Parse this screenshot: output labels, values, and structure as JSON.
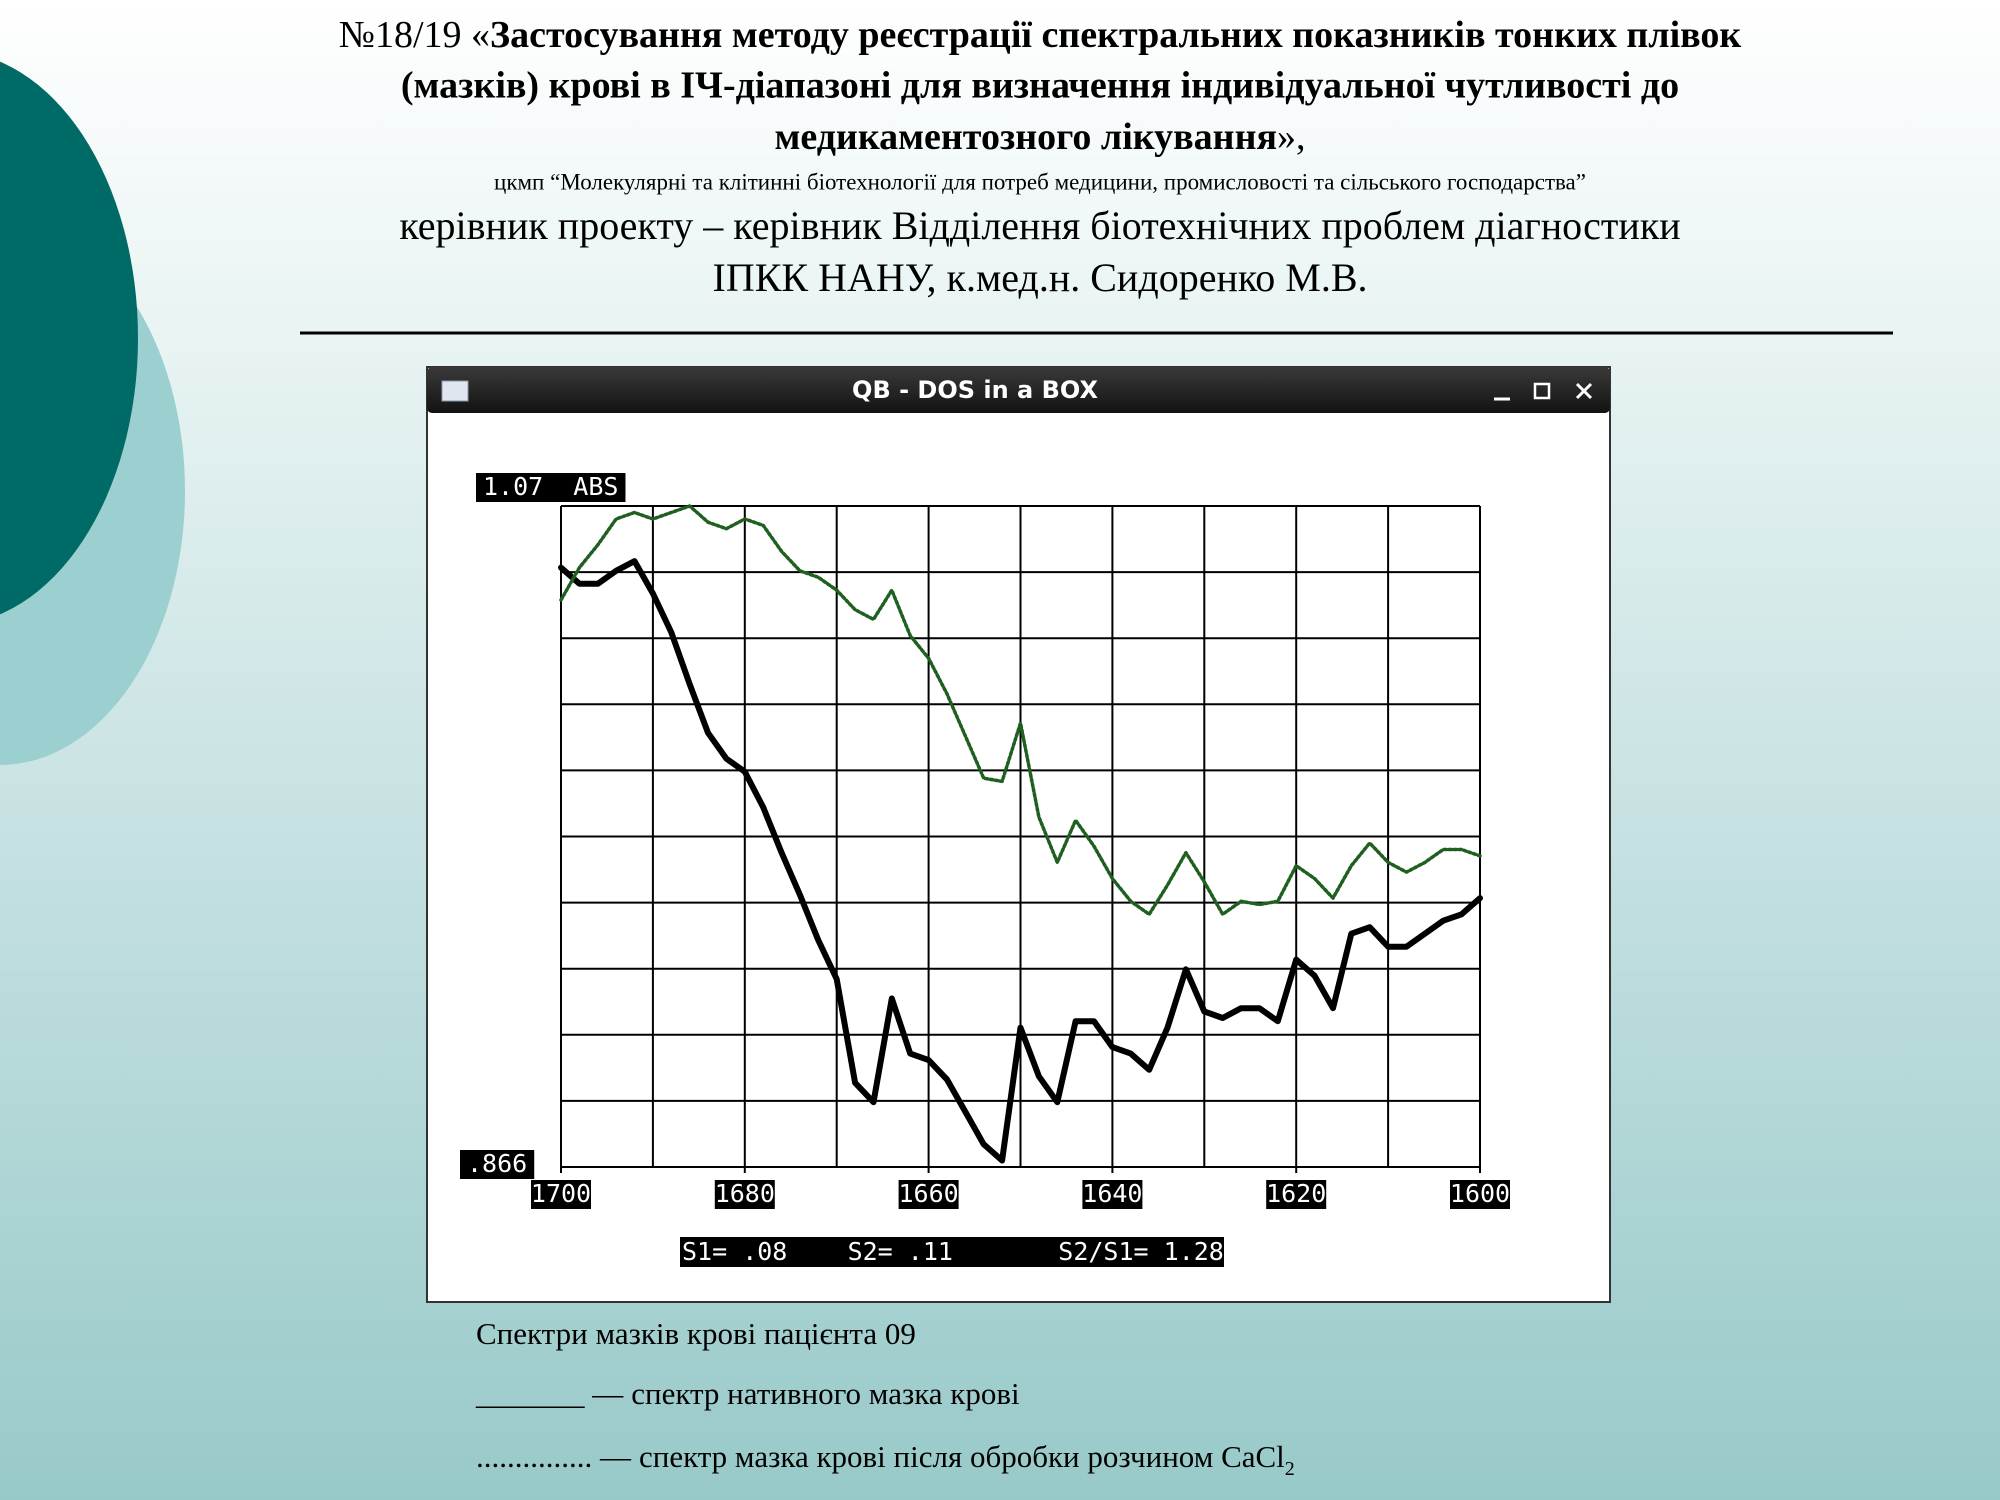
{
  "slide": {
    "title": {
      "prefix": "№18/19 «",
      "lines": [
        "Застосування методу реєстрації спектральних показників тонких плівок",
        "(мазків) крові в ІЧ-діапазоні для визначення індивідуальної чутливості до",
        "медикаментозного лікування"
      ],
      "suffix": "»,"
    },
    "program": "цкмп “Молекулярні та клітинні біотехнології для потреб медицини, промисловості та сільського господарства”",
    "leader_lines": [
      "керівник проекту – керівник Відділення біотехнічних проблем діагностики",
      "ІПКК НАНУ, к.мед.н. Сидоренко М.В."
    ],
    "window_title": "QB - DOS in a BOX",
    "caption": "Спектри мазків крові пацієнта 09"
  },
  "chart_data": {
    "type": "line",
    "x": [
      1700,
      1698,
      1696,
      1694,
      1692,
      1690,
      1688,
      1686,
      1684,
      1682,
      1680,
      1678,
      1676,
      1674,
      1672,
      1670,
      1668,
      1666,
      1664,
      1662,
      1660,
      1658,
      1656,
      1654,
      1652,
      1650,
      1648,
      1646,
      1644,
      1642,
      1640,
      1638,
      1636,
      1634,
      1632,
      1630,
      1628,
      1626,
      1624,
      1622,
      1620,
      1618,
      1616,
      1614,
      1612,
      1610,
      1608,
      1606,
      1604,
      1602,
      1600
    ],
    "xlim": [
      1700,
      1600
    ],
    "xticks": [
      1700,
      1680,
      1660,
      1640,
      1620,
      1600
    ],
    "ylim": [
      0.866,
      1.07
    ],
    "yticks": [
      {
        "value": 1.07,
        "label": "1.07  ABS"
      },
      {
        "value": 0.866,
        "label": ".866"
      }
    ],
    "grid": true,
    "grid_cells": [
      10,
      10
    ],
    "annotation": "S1= .08    S2= .11       S2/S1= 1.28",
    "series": [
      {
        "name": "спектр нативного мазка крові",
        "legend_marker": "_______ —",
        "color": "#000000",
        "style": "solid",
        "values": [
          1.051,
          1.046,
          1.046,
          1.05,
          1.053,
          1.043,
          1.031,
          1.015,
          1.0,
          0.992,
          0.988,
          0.977,
          0.963,
          0.95,
          0.936,
          0.924,
          0.892,
          0.886,
          0.918,
          0.901,
          0.899,
          0.893,
          0.883,
          0.873,
          0.868,
          0.909,
          0.894,
          0.886,
          0.911,
          0.911,
          0.903,
          0.901,
          0.896,
          0.909,
          0.927,
          0.914,
          0.912,
          0.915,
          0.915,
          0.911,
          0.93,
          0.925,
          0.915,
          0.938,
          0.94,
          0.934,
          0.934,
          0.938,
          0.942,
          0.944,
          0.949
        ]
      },
      {
        "name": "спектр мазка крові після обробки розчином CaCl",
        "name_subscript": "2",
        "legend_marker": "............... —",
        "color": "#1f5f1f",
        "style": "dotted",
        "values": [
          1.041,
          1.051,
          1.058,
          1.066,
          1.068,
          1.066,
          1.068,
          1.07,
          1.065,
          1.063,
          1.066,
          1.064,
          1.056,
          1.05,
          1.048,
          1.044,
          1.038,
          1.035,
          1.044,
          1.03,
          1.023,
          1.012,
          0.999,
          0.986,
          0.985,
          1.003,
          0.974,
          0.96,
          0.973,
          0.965,
          0.955,
          0.948,
          0.944,
          0.953,
          0.963,
          0.954,
          0.944,
          0.948,
          0.947,
          0.948,
          0.959,
          0.955,
          0.949,
          0.959,
          0.966,
          0.96,
          0.957,
          0.96,
          0.964,
          0.964,
          0.962
        ]
      }
    ]
  }
}
